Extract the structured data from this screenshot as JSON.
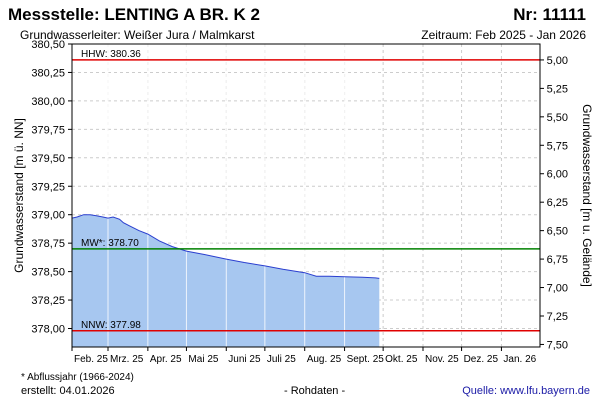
{
  "header": {
    "title": "Messstelle: LENTING A BR. K 2",
    "station_number": "Nr: 11111",
    "aquifer": "Grundwasserleiter:   Weißer Jura / Malmkarst",
    "period": "Zeitraum: Feb 2025 - Jan 2026"
  },
  "footer": {
    "footnote": "* Abflussjahr (1966-2024)",
    "created": "erstellt:  04.01.2026",
    "raw_data": "- Rohdaten -",
    "source": "Quelle: www.lfu.bayern.de"
  },
  "colors": {
    "area_fill": "#a7c7f0",
    "line": "#2b3fcf",
    "hhw": "#e00000",
    "nnw": "#e00000",
    "mw": "#008000",
    "grid": "#cccccc"
  },
  "chart_data": {
    "type": "area",
    "ylabel": "Grundwasserstand [m ü. NN]",
    "ylabel_right": "Grundwasserstand [m u. Gelände]",
    "ylim": [
      377.8375,
      380.5
    ],
    "yticks": [
      380.5,
      380.25,
      380.0,
      379.75,
      379.5,
      379.25,
      379.0,
      378.75,
      378.5,
      378.25,
      378.0
    ],
    "ytick_labels": [
      "380,50",
      "380,25",
      "380,00",
      "379,75",
      "379,50",
      "379,25",
      "379,00",
      "378,75",
      "378,50",
      "378,25",
      "378,00"
    ],
    "right_axis_ground_level": 385.36,
    "right_yticks": [
      5.0,
      5.25,
      5.5,
      5.75,
      6.0,
      6.25,
      6.5,
      6.75,
      7.0,
      7.25,
      7.5
    ],
    "right_ytick_labels": [
      "5,00",
      "5,25",
      "5,50",
      "5,75",
      "6,00",
      "6,25",
      "6,50",
      "6,75",
      "7,00",
      "7,25",
      "7,50"
    ],
    "xlim": [
      "2025-02-01",
      "2026-01-31"
    ],
    "xticks": [
      "2025-02-01",
      "2025-03-01",
      "2025-04-01",
      "2025-05-01",
      "2025-06-01",
      "2025-07-01",
      "2025-08-01",
      "2025-09-01",
      "2025-10-01",
      "2025-11-01",
      "2025-12-01",
      "2026-01-01"
    ],
    "xtick_labels": [
      "Feb. 25",
      "Mrz. 25",
      "Apr. 25",
      "Mai 25",
      "Juni 25",
      "Juli 25",
      "Aug. 25",
      "Sept. 25",
      "Okt. 25",
      "Nov. 25",
      "Dez. 25",
      "Jan. 26"
    ],
    "grid": true,
    "reference_lines": [
      {
        "label": "HHW: 380.36",
        "value": 380.36,
        "color": "#e00000"
      },
      {
        "label": "MW*: 378.70",
        "value": 378.7,
        "color": "#008000"
      },
      {
        "label": "NNW: 377.98",
        "value": 377.98,
        "color": "#e00000"
      }
    ],
    "series": [
      {
        "x": [
          "2025-02-01",
          "2025-02-05",
          "2025-02-10",
          "2025-02-15",
          "2025-02-20",
          "2025-02-25",
          "2025-03-01",
          "2025-03-05",
          "2025-03-10",
          "2025-03-13",
          "2025-03-18",
          "2025-03-25",
          "2025-04-01",
          "2025-04-10",
          "2025-04-20",
          "2025-05-01",
          "2025-05-15",
          "2025-06-01",
          "2025-06-15",
          "2025-07-01",
          "2025-07-15",
          "2025-08-01",
          "2025-08-10",
          "2025-08-20",
          "2025-09-01",
          "2025-09-15",
          "2025-09-25",
          "2025-09-28"
        ],
        "y": [
          378.97,
          378.98,
          379.0,
          379.0,
          378.99,
          378.98,
          378.97,
          378.98,
          378.96,
          378.93,
          378.9,
          378.86,
          378.83,
          378.77,
          378.72,
          378.68,
          378.65,
          378.61,
          378.58,
          378.55,
          378.52,
          378.49,
          378.46,
          378.46,
          378.455,
          378.45,
          378.445,
          378.44
        ]
      }
    ]
  }
}
